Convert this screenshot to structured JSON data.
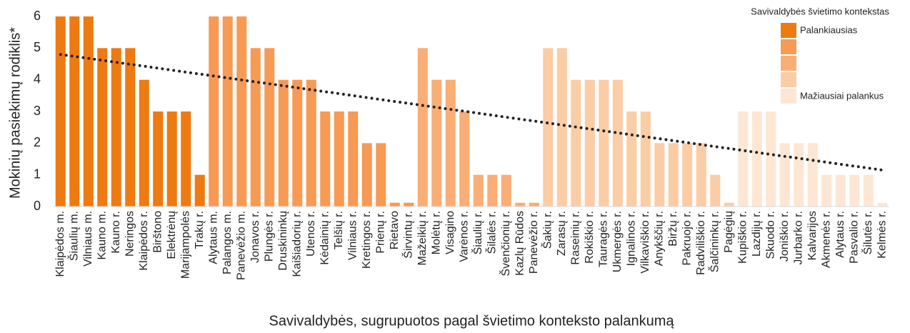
{
  "chart_data": {
    "type": "bar",
    "ylabel": "Mokinių pasiekimų rodiklis*",
    "xlabel": "Savivaldybės, sugrupuotos pagal švietimo konteksto palankumą",
    "categories": [
      "Klaipėdos m.",
      "Šiaulių m.",
      "Vilniaus m.",
      "Kauno m.",
      "Kauno r.",
      "Neringos",
      "Klaipėdos r.",
      "Birštono",
      "Elektrėnų",
      "Marijampolės",
      "Trakų r.",
      "Alytaus m.",
      "Palangos m.",
      "Panevėžio m.",
      "Jonavos r.",
      "Plungės r.",
      "Druskininkų",
      "Kaišiadorių r.",
      "Utenos r.",
      "Kėdainių r.",
      "Telšių r.",
      "Vilniaus r.",
      "Kretingos r.",
      "Prienų r.",
      "Rietavo",
      "Širvintų r.",
      "Mažeikių r.",
      "Molėtų r.",
      "Visagino",
      "Varėnos r.",
      "Šiaulių r.",
      "Šilalės r.",
      "Švenčionių r.",
      "Kazlų Rūdos",
      "Panevėžio r.",
      "Šakių r.",
      "Zarasų r.",
      "Raseinių r.",
      "Rokiškio r.",
      "Tauragės r.",
      "Ukmergės r.",
      "Ignalinos r.",
      "Vilkaviškio r.",
      "Anykščių r.",
      "Biržų r.",
      "Pakruojo r.",
      "Radviliškio r.",
      "Šalčininkų r.",
      "Pagėgių",
      "Kupiškio r.",
      "Lazdijų r.",
      "Skuodo r.",
      "Joniškio r.",
      "Jurbarko r.",
      "Kalvarijos",
      "Akmenės r.",
      "Alytaus r.",
      "Pasvalio r.",
      "Šilutės r.",
      "Kelmės r."
    ],
    "values": [
      6,
      6,
      6,
      5,
      5,
      5,
      4,
      3,
      3,
      3,
      1,
      6,
      6,
      6,
      5,
      5,
      4,
      4,
      4,
      3,
      3,
      3,
      2,
      2,
      0.12,
      0.12,
      5,
      4,
      4,
      3,
      1,
      1,
      1,
      0.12,
      0.12,
      5,
      5,
      4,
      4,
      4,
      4,
      3,
      3,
      2,
      2,
      2,
      2,
      1,
      0.12,
      3,
      3,
      3,
      2,
      2,
      2,
      1,
      1,
      1,
      1,
      0.12
    ],
    "bar_colors": [
      "#EE7A12",
      "#EE7A12",
      "#EE7A12",
      "#EE7A12",
      "#EE7A12",
      "#EE7A12",
      "#EE7A12",
      "#EE7A12",
      "#EE7A12",
      "#EE7A12",
      "#EE7A12",
      "#F79A54",
      "#F79A54",
      "#F79A54",
      "#F79A54",
      "#F79A54",
      "#F79A54",
      "#F79A54",
      "#F79A54",
      "#F79A54",
      "#F79A54",
      "#F79A54",
      "#F79A54",
      "#F79A54",
      "#F79A54",
      "#F79A54",
      "#F9AE75",
      "#F9AE75",
      "#F9AE75",
      "#F9AE75",
      "#F9AE75",
      "#F9AE75",
      "#F9AE75",
      "#F9AE75",
      "#F9AE75",
      "#FBCDA5",
      "#FBCDA5",
      "#FBCDA5",
      "#FBCDA5",
      "#FBCDA5",
      "#FBCDA5",
      "#FBCDA5",
      "#FBCDA5",
      "#FBCDA5",
      "#FBCDA5",
      "#FBCDA5",
      "#FBCDA5",
      "#FBCDA5",
      "#FBCDA5",
      "#FDE7D4",
      "#FDE7D4",
      "#FDE7D4",
      "#FDE7D4",
      "#FDE7D4",
      "#FDE7D4",
      "#FDE7D4",
      "#FDE7D4",
      "#FDE7D4",
      "#FDE7D4",
      "#FDE7D4"
    ],
    "ylim": [
      0,
      6
    ],
    "yticks": [
      0,
      1,
      2,
      3,
      4,
      5,
      6
    ],
    "trendline": {
      "values": [
        4.8,
        1.15
      ],
      "color": "#222222"
    },
    "legend": {
      "title": "Savivaldybės švietimo kontekstas",
      "position": "upper right",
      "items": [
        {
          "color": "#EE7A12",
          "label": "Palankiausias"
        },
        {
          "color": "#F79A54"
        },
        {
          "color": "#F9AE75"
        },
        {
          "color": "#FBCDA5"
        },
        {
          "color": "#FDE7D4",
          "label": "Mažiausiai palankus"
        }
      ]
    }
  }
}
